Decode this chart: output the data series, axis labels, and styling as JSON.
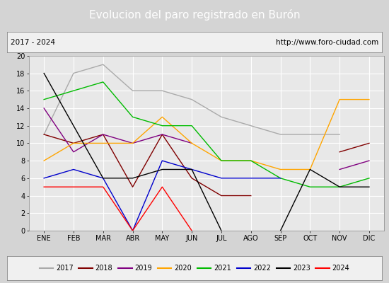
{
  "title": "Evolucion del paro registrado en Burón",
  "subtitle_left": "2017 - 2024",
  "subtitle_right": "http://www.foro-ciudad.com",
  "x_labels": [
    "ENE",
    "FEB",
    "MAR",
    "ABR",
    "MAY",
    "JUN",
    "JUL",
    "AGO",
    "SEP",
    "OCT",
    "NOV",
    "DIC"
  ],
  "ylim": [
    0,
    20
  ],
  "yticks": [
    0,
    2,
    4,
    6,
    8,
    10,
    12,
    14,
    16,
    18,
    20
  ],
  "series": {
    "2017": {
      "color": "#aaaaaa",
      "data": [
        11,
        18,
        19,
        16,
        16,
        15,
        13,
        12,
        11,
        11,
        11,
        null
      ]
    },
    "2018": {
      "color": "#800000",
      "data": [
        11,
        10,
        11,
        5,
        11,
        6,
        4,
        4,
        null,
        null,
        9,
        10
      ]
    },
    "2019": {
      "color": "#800080",
      "data": [
        14,
        9,
        11,
        10,
        11,
        10,
        null,
        null,
        null,
        null,
        7,
        8
      ]
    },
    "2020": {
      "color": "#ffa500",
      "data": [
        8,
        10,
        10,
        10,
        13,
        10,
        8,
        8,
        7,
        7,
        15,
        15
      ]
    },
    "2021": {
      "color": "#00bb00",
      "data": [
        15,
        16,
        17,
        13,
        12,
        12,
        8,
        8,
        6,
        5,
        5,
        6
      ]
    },
    "2022": {
      "color": "#0000cc",
      "data": [
        6,
        7,
        6,
        0,
        8,
        7,
        6,
        6,
        6,
        null,
        null,
        null
      ]
    },
    "2023": {
      "color": "#000000",
      "data": [
        18,
        12,
        6,
        6,
        7,
        7,
        0,
        null,
        0,
        7,
        5,
        5
      ]
    },
    "2024": {
      "color": "#ff0000",
      "data": [
        5,
        5,
        5,
        0,
        5,
        0,
        null,
        null,
        null,
        null,
        null,
        null
      ]
    }
  },
  "background_color": "#d4d4d4",
  "plot_bg_color": "#e8e8e8",
  "title_bg_color": "#4472c4",
  "title_color": "#ffffff",
  "info_bg_color": "#f0f0f0",
  "title_fontsize": 11,
  "info_fontsize": 7.5,
  "tick_fontsize": 7,
  "legend_fontsize": 7
}
